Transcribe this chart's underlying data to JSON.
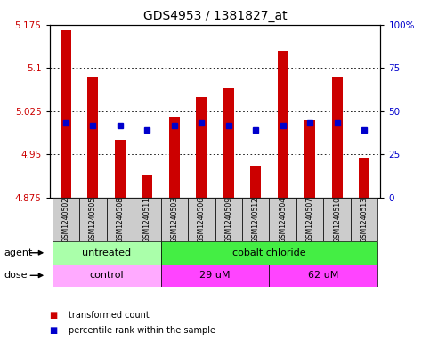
{
  "title": "GDS4953 / 1381827_at",
  "samples": [
    "GSM1240502",
    "GSM1240505",
    "GSM1240508",
    "GSM1240511",
    "GSM1240503",
    "GSM1240506",
    "GSM1240509",
    "GSM1240512",
    "GSM1240504",
    "GSM1240507",
    "GSM1240510",
    "GSM1240513"
  ],
  "bar_tops": [
    5.165,
    5.085,
    4.975,
    4.915,
    5.015,
    5.05,
    5.065,
    4.93,
    5.13,
    5.01,
    5.085,
    4.945
  ],
  "bar_bottoms": [
    4.875,
    4.875,
    4.875,
    4.875,
    4.875,
    4.875,
    4.875,
    4.875,
    4.875,
    4.875,
    4.875,
    4.875
  ],
  "blue_dots": [
    5.005,
    5.0,
    5.0,
    4.993,
    5.0,
    5.005,
    5.0,
    4.993,
    5.0,
    5.005,
    5.005,
    4.993
  ],
  "ylim": [
    4.875,
    5.175
  ],
  "yticks_left": [
    4.875,
    4.95,
    5.025,
    5.1,
    5.175
  ],
  "ytick_labels_left": [
    "4.875",
    "4.95",
    "5.025",
    "5.1",
    "5.175"
  ],
  "yticks_right_pct": [
    0,
    25,
    50,
    75,
    100
  ],
  "ytick_labels_right": [
    "0",
    "25",
    "50",
    "75",
    "100%"
  ],
  "bar_color": "#cc0000",
  "dot_color": "#0000cc",
  "agent_groups": [
    {
      "label": "untreated",
      "start": 0,
      "end": 4,
      "color": "#aaffaa"
    },
    {
      "label": "cobalt chloride",
      "start": 4,
      "end": 12,
      "color": "#44ee44"
    }
  ],
  "dose_groups": [
    {
      "label": "control",
      "start": 0,
      "end": 4,
      "color": "#ffaaff"
    },
    {
      "label": "29 uM",
      "start": 4,
      "end": 8,
      "color": "#ff44ff"
    },
    {
      "label": "62 uM",
      "start": 8,
      "end": 12,
      "color": "#ff44ff"
    }
  ],
  "legend_items": [
    {
      "label": "transformed count",
      "color": "#cc0000"
    },
    {
      "label": "percentile rank within the sample",
      "color": "#0000cc"
    }
  ],
  "sample_bg_color": "#cccccc",
  "tick_label_color_left": "#cc0000",
  "tick_label_color_right": "#0000cc",
  "bar_width": 0.4
}
